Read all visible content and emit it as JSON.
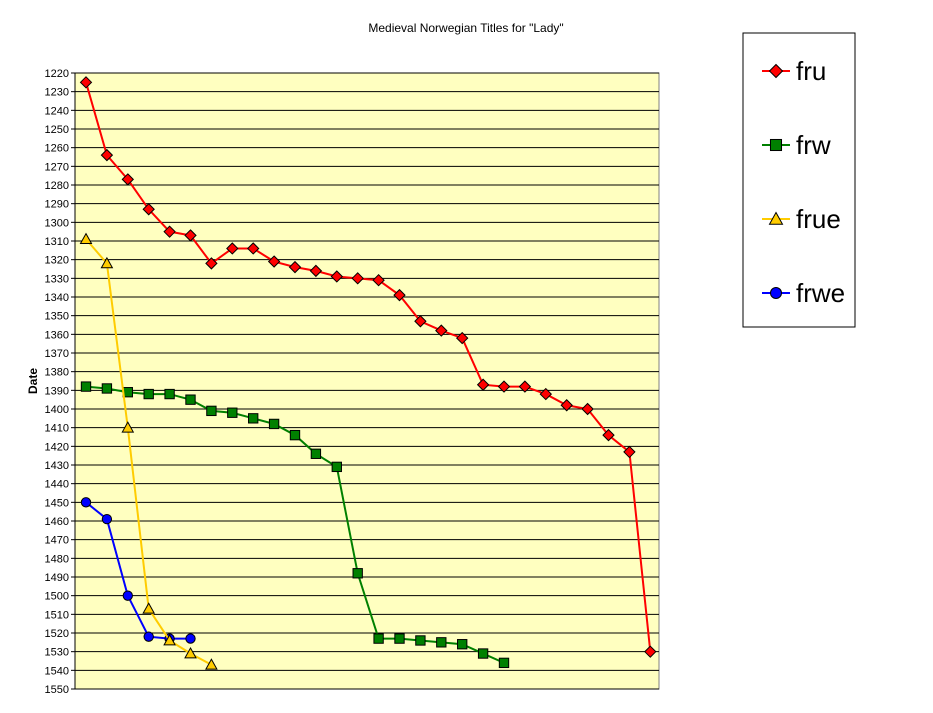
{
  "chart_data": {
    "type": "line",
    "title": "Medieval Norwegian Titles for \"Lady\"",
    "ylabel": "Date",
    "xlabel": "",
    "ylim": [
      1220,
      1550
    ],
    "y_reversed": true,
    "y_ticks": [
      1220,
      1230,
      1240,
      1250,
      1260,
      1270,
      1280,
      1290,
      1300,
      1310,
      1320,
      1330,
      1340,
      1350,
      1360,
      1370,
      1380,
      1390,
      1400,
      1410,
      1420,
      1430,
      1440,
      1450,
      1460,
      1470,
      1480,
      1490,
      1500,
      1510,
      1520,
      1530,
      1540,
      1550
    ],
    "x_visible": false,
    "grid": "horizontal",
    "plot_background": "#ffffc0",
    "legend_position": "right",
    "series": [
      {
        "name": "fru",
        "color": "#ff0000",
        "marker": "diamond",
        "values": [
          1225,
          1264,
          1277,
          1293,
          1305,
          1307,
          1322,
          1314,
          1314,
          1321,
          1324,
          1326,
          1329,
          1330,
          1331,
          1339,
          1353,
          1358,
          1362,
          1387,
          1388,
          1388,
          1392,
          1398,
          1400,
          1414,
          1423,
          1530
        ]
      },
      {
        "name": "frw",
        "color": "#008000",
        "marker": "square",
        "values": [
          1388,
          1389,
          1391,
          1392,
          1392,
          1395,
          1401,
          1402,
          1405,
          1408,
          1414,
          1424,
          1431,
          1488,
          1523,
          1523,
          1524,
          1525,
          1526,
          1531,
          1536
        ]
      },
      {
        "name": "frue",
        "color": "#ffcc00",
        "marker": "triangle",
        "values": [
          1309,
          1322,
          1410,
          1507,
          1524,
          1531,
          1537
        ]
      },
      {
        "name": "frwe",
        "color": "#0000ff",
        "marker": "circle",
        "values": [
          1450,
          1459,
          1500,
          1522,
          1523,
          1523
        ]
      }
    ]
  }
}
